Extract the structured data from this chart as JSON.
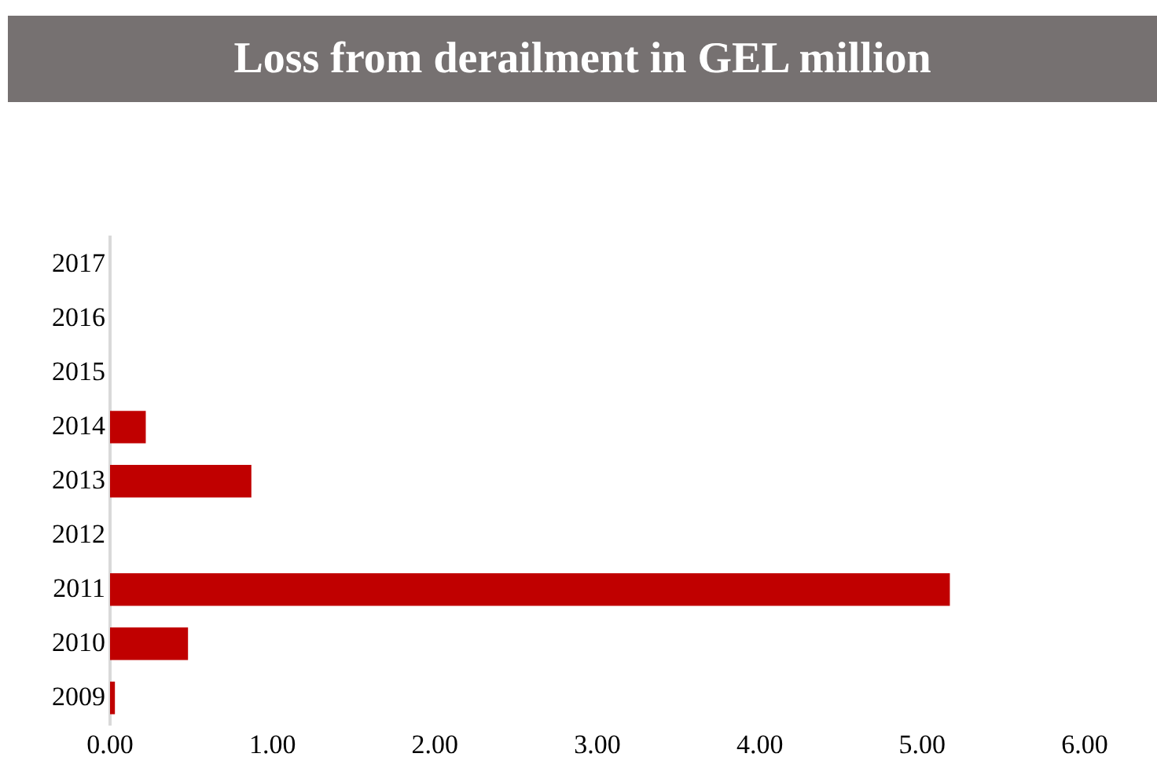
{
  "chart_data": {
    "type": "bar",
    "title": "Loss from derailment in GEL million",
    "orientation": "horizontal",
    "categories": [
      "2017",
      "2016",
      "2015",
      "2014",
      "2013",
      "2012",
      "2011",
      "2010",
      "2009"
    ],
    "values": [
      0,
      0,
      0,
      0.22,
      0.87,
      0,
      5.17,
      0.48,
      0.03
    ],
    "color": "#c00000",
    "xlim": [
      0,
      6
    ],
    "xticks": [
      {
        "value": 0,
        "label": "0.00"
      },
      {
        "value": 1,
        "label": "1.00"
      },
      {
        "value": 2,
        "label": "2.00"
      },
      {
        "value": 3,
        "label": "3.00"
      },
      {
        "value": 4,
        "label": "4.00"
      },
      {
        "value": 5,
        "label": "5.00"
      },
      {
        "value": 6,
        "label": "6.00"
      }
    ],
    "grid": false,
    "legend": false
  }
}
